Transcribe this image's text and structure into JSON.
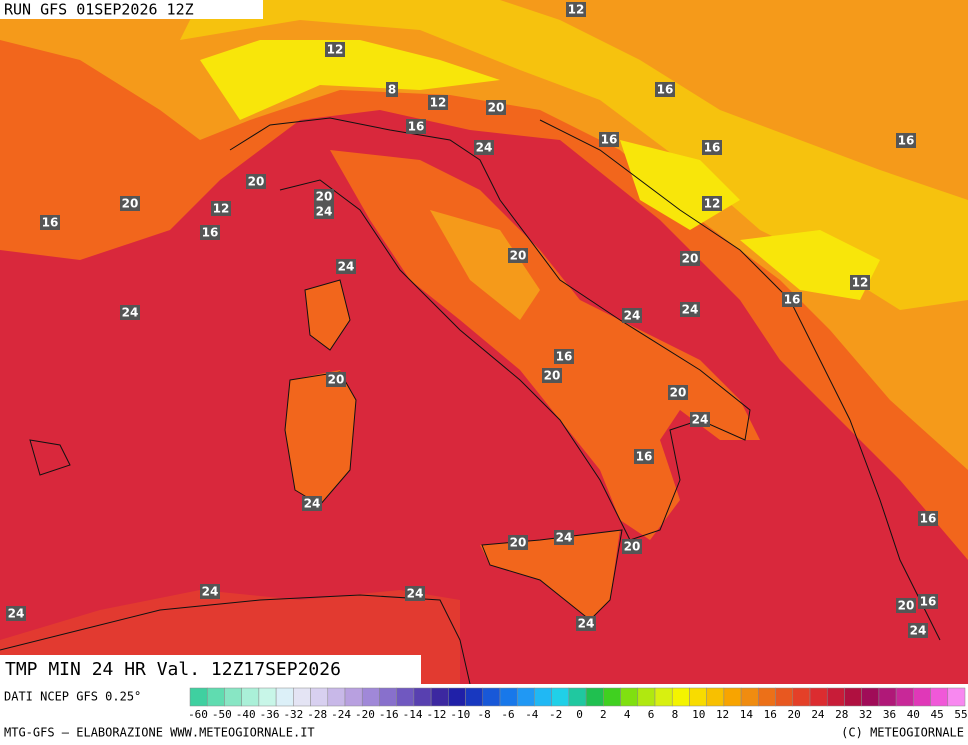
{
  "header": {
    "run": "RUN GFS 01SEP2026 12Z"
  },
  "map": {
    "title": "TMP MIN 24 HR Val. 12Z17SEP2026",
    "contour_labels": [
      "12",
      "12",
      "8",
      "12",
      "20",
      "16",
      "16",
      "24",
      "16",
      "16",
      "16",
      "20",
      "20",
      "24",
      "20",
      "12",
      "16",
      "16",
      "12",
      "20",
      "20",
      "24",
      "12",
      "16",
      "24",
      "24",
      "24",
      "16",
      "20",
      "20",
      "20",
      "24",
      "16",
      "24",
      "16",
      "24",
      "20",
      "20",
      "24",
      "24",
      "24",
      "20",
      "16",
      "24",
      "24"
    ]
  },
  "legend": {
    "source": "DATI NCEP GFS 0.25°",
    "labels": [
      "-60",
      "-50",
      "-40",
      "-36",
      "-32",
      "-28",
      "-24",
      "-20",
      "-16",
      "-14",
      "-12",
      "-10",
      "-8",
      "-6",
      "-4",
      "-2",
      "0",
      "2",
      "4",
      "6",
      "8",
      "10",
      "12",
      "14",
      "16",
      "20",
      "24",
      "28",
      "32",
      "36",
      "40",
      "45",
      "55"
    ]
  },
  "footer": {
    "credit": "MTG-GFS — ELABORAZIONE WWW.METEOGIORNALE.IT",
    "copyright": "(C) METEOGIORNALE"
  }
}
